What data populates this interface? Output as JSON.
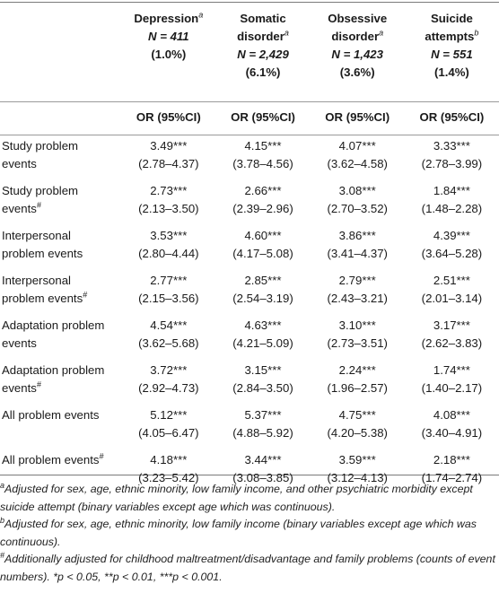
{
  "headers": [
    {
      "name": "Depression",
      "sup": "a",
      "n": "N = 411",
      "pct": "(1.0%)",
      "stat": "OR (95%CI)"
    },
    {
      "name": "Somatic disorder",
      "sup": "a",
      "n": "N = 2,429",
      "pct": "(6.1%)",
      "stat": "OR (95%CI)"
    },
    {
      "name": "Obsessive disorder",
      "sup": "a",
      "n": "N = 1,423",
      "pct": "(3.6%)",
      "stat": "OR (95%CI)"
    },
    {
      "name": "Suicide attempts",
      "sup": "b",
      "n": "N = 551",
      "pct": "(1.4%)",
      "stat": "OR (95%CI)"
    }
  ],
  "rows": [
    {
      "label1": "Study problem",
      "label2": "events",
      "mark": "",
      "cells": [
        [
          "3.49***",
          "(2.78–4.37)"
        ],
        [
          "4.15***",
          "(3.78–4.56)"
        ],
        [
          "4.07***",
          "(3.62–4.58)"
        ],
        [
          "3.33***",
          "(2.78–3.99)"
        ]
      ]
    },
    {
      "label1": "Study problem",
      "label2": "events",
      "mark": "#",
      "cells": [
        [
          "2.73***",
          "(2.13–3.50)"
        ],
        [
          "2.66***",
          "(2.39–2.96)"
        ],
        [
          "3.08***",
          "(2.70–3.52)"
        ],
        [
          "1.84***",
          "(1.48–2.28)"
        ]
      ]
    },
    {
      "label1": "Interpersonal",
      "label2": "problem events",
      "mark": "",
      "cells": [
        [
          "3.53***",
          "(2.80–4.44)"
        ],
        [
          "4.60***",
          "(4.17–5.08)"
        ],
        [
          "3.86***",
          "(3.41–4.37)"
        ],
        [
          "4.39***",
          "(3.64–5.28)"
        ]
      ]
    },
    {
      "label1": "Interpersonal",
      "label2": "problem events",
      "mark": "#",
      "cells": [
        [
          "2.77***",
          "(2.15–3.56)"
        ],
        [
          "2.85***",
          "(2.54–3.19)"
        ],
        [
          "2.79***",
          "(2.43–3.21)"
        ],
        [
          "2.51***",
          "(2.01–3.14)"
        ]
      ]
    },
    {
      "label1": "Adaptation problem",
      "label2": "events",
      "mark": "",
      "cells": [
        [
          "4.54***",
          "(3.62–5.68)"
        ],
        [
          "4.63***",
          "(4.21–5.09)"
        ],
        [
          "3.10***",
          "(2.73–3.51)"
        ],
        [
          "3.17***",
          "(2.62–3.83)"
        ]
      ]
    },
    {
      "label1": "Adaptation problem",
      "label2": "events",
      "mark": "#",
      "cells": [
        [
          "3.72***",
          "(2.92–4.73)"
        ],
        [
          "3.15***",
          "(2.84–3.50)"
        ],
        [
          "2.24***",
          "(1.96–2.57)"
        ],
        [
          "1.74***",
          "(1.40–2.17)"
        ]
      ]
    },
    {
      "label1": "All problem events",
      "label2": "",
      "mark": "",
      "cells": [
        [
          "5.12***",
          "(4.05–6.47)"
        ],
        [
          "5.37***",
          "(4.88–5.92)"
        ],
        [
          "4.75***",
          "(4.20–5.38)"
        ],
        [
          "4.08***",
          "(3.40–4.91)"
        ]
      ]
    },
    {
      "label1": "All problem events",
      "label2": "",
      "mark": "#",
      "cells": [
        [
          "4.18***",
          "(3.23–5.42)"
        ],
        [
          "3.44***",
          "(3.08–3.85)"
        ],
        [
          "3.59***",
          "(3.12–4.13)"
        ],
        [
          "2.18***",
          "(1.74–2.74)"
        ]
      ]
    }
  ],
  "footnotes": [
    {
      "mark": "a",
      "text": "Adjusted for sex, age, ethnic minority, low family income, and other psychiatric morbidity except suicide attempt (binary variables except age which was continuous)."
    },
    {
      "mark": "b",
      "text": "Adjusted for sex, age, ethnic minority, low family income (binary variables except age which was continuous)."
    },
    {
      "mark": "#",
      "text": "Additionally adjusted for childhood maltreatment/disadvantage and family problems (counts of event numbers). *p < 0.05, **p < 0.01, ***p < 0.001."
    }
  ]
}
